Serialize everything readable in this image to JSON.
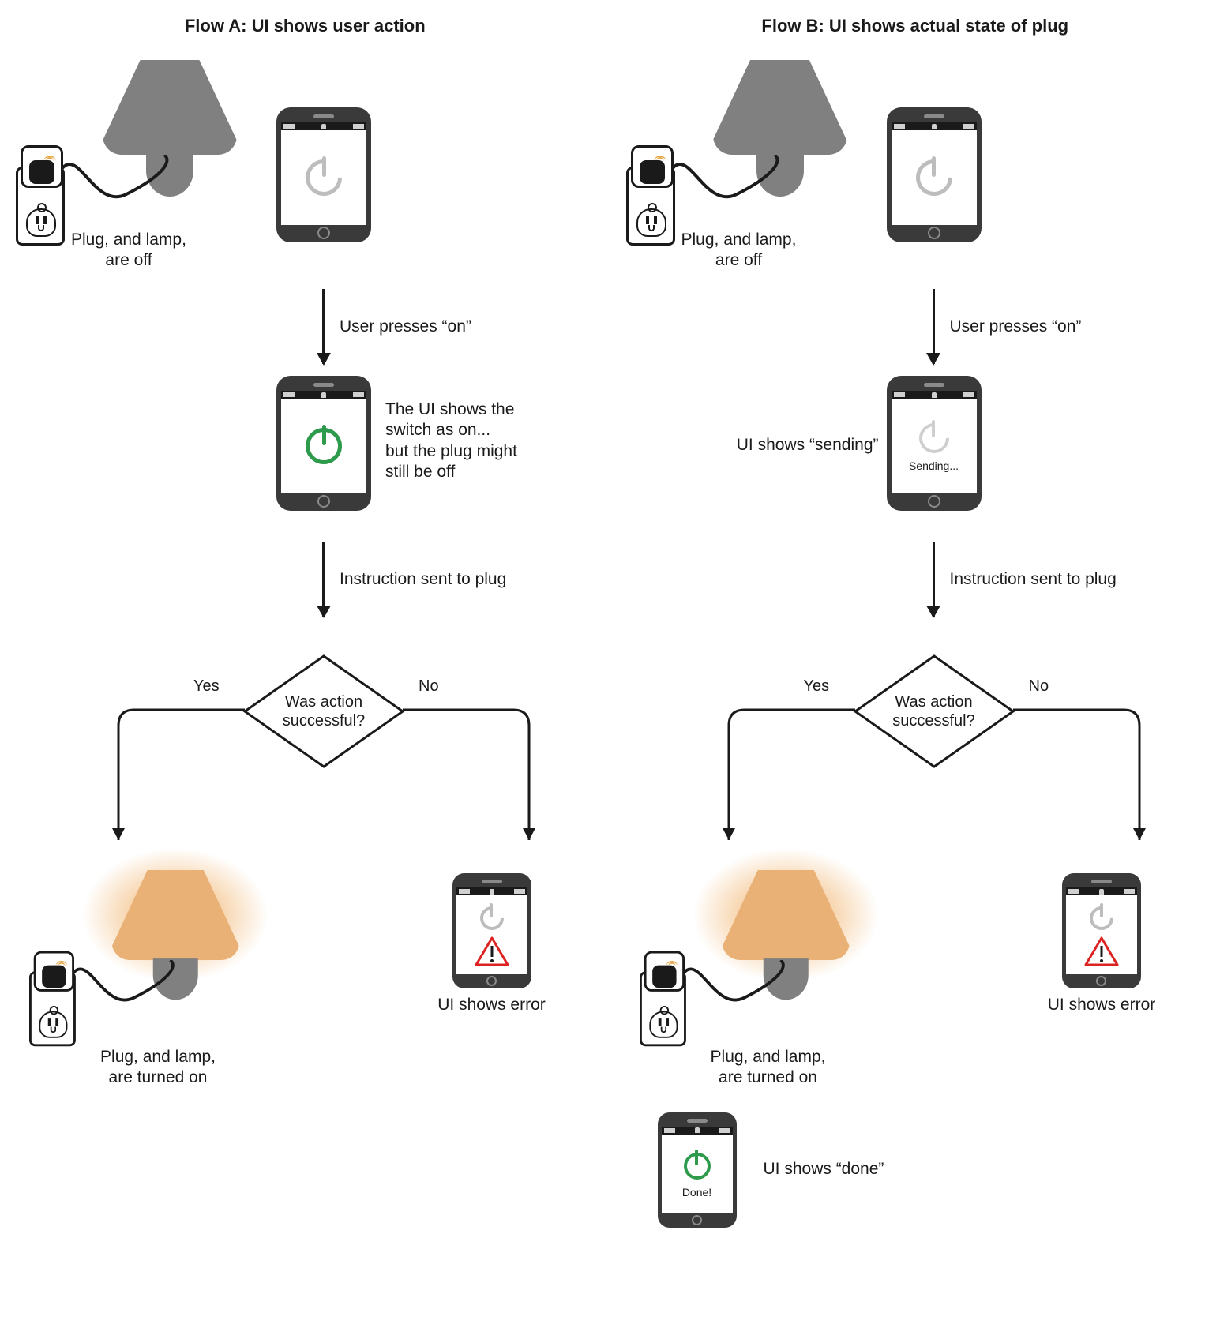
{
  "colors": {
    "stroke": "#1a1a1a",
    "lamp_off": "#808080",
    "glow": "#f1b46e",
    "green": "#2e9a4b",
    "icon_grey": "#bdbdbd",
    "warn_red": "#d22",
    "wifi": "#e8a84a",
    "bg": "#ffffff"
  },
  "line_width": 3,
  "arrowhead_size": 16,
  "flowA": {
    "title": "Flow A: UI shows user action",
    "stage1_caption": "Plug, and lamp,\nare off",
    "arrow1_label": "User presses “on”",
    "stage2_caption": "The UI shows the\nswitch as on...\nbut the plug might\nstill be off",
    "arrow2_label": "Instruction sent to plug",
    "decision_text": "Was action\nsuccessful?",
    "decision_yes": "Yes",
    "decision_no": "No",
    "outcome_yes_caption": "Plug, and lamp,\nare turned on",
    "outcome_no_caption": "UI shows error",
    "phone_states": {
      "s1": {
        "icon_color": "#bdbdbd",
        "ring_closed": false,
        "label": null
      },
      "s2": {
        "icon_color": "#2e9a4b",
        "ring_closed": true,
        "label": null
      },
      "err": {
        "icon_color": "#bdbdbd",
        "warn": true
      }
    }
  },
  "flowB": {
    "title": "Flow B: UI shows actual state of plug",
    "stage1_caption": "Plug, and lamp,\nare off",
    "arrow1_label": "User presses “on”",
    "stage2_caption": "UI shows “sending”",
    "arrow2_label": "Instruction sent to plug",
    "decision_text": "Was action\nsuccessful?",
    "decision_yes": "Yes",
    "decision_no": "No",
    "outcome_yes_caption": "Plug, and lamp,\nare turned on",
    "outcome_no_caption": "UI shows error",
    "done_caption": "UI shows “done”",
    "phone_states": {
      "s1": {
        "icon_color": "#bdbdbd",
        "ring_closed": false,
        "label": null
      },
      "s2": {
        "icon_color": "#bdbdbd",
        "ring_closed": false,
        "label": "Sending..."
      },
      "err": {
        "icon_color": "#bdbdbd",
        "warn": true
      },
      "done": {
        "icon_color": "#2e9a4b",
        "ring_closed": true,
        "label": "Done!"
      }
    }
  }
}
